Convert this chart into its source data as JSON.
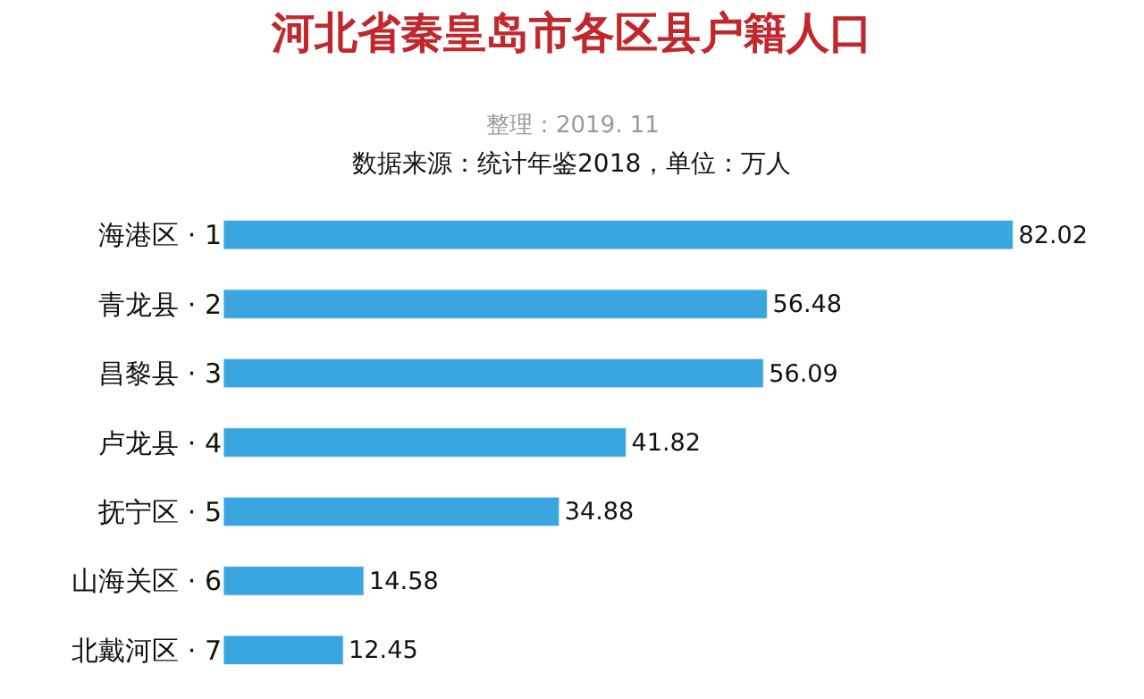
{
  "chart_data": {
    "type": "bar",
    "orientation": "horizontal",
    "title": "河北省秦皇岛市各区县户籍人口",
    "subtitle": "整理：2019. 11",
    "annotations": [
      "数据来源：统计年鉴2018，单位：万人"
    ],
    "categories": [
      "海港区 · 1",
      "青龙县 · 2",
      "昌黎县 · 3",
      "卢龙县 · 4",
      "抚宁区 · 5",
      "山海关区 · 6",
      "北戴河区 · 7"
    ],
    "values": [
      82.02,
      56.48,
      56.09,
      41.82,
      34.88,
      14.58,
      12.45
    ],
    "color": "#3aa6e0",
    "data_labels": true,
    "tick_labels": "y",
    "legend": false
  }
}
